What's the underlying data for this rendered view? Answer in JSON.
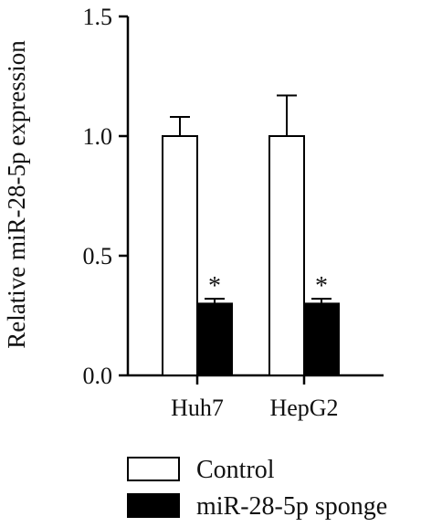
{
  "chart_data": {
    "type": "bar",
    "ylabel": "Relative miR-28-5p expression",
    "xlabel": "",
    "ylim": [
      0,
      1.5
    ],
    "yticks": [
      "0.0",
      "0.5",
      "1.0",
      "1.5"
    ],
    "categories": [
      "Huh7",
      "HepG2"
    ],
    "series": [
      {
        "name": "Control",
        "values": [
          1.0,
          1.0
        ],
        "errors": [
          0.08,
          0.17
        ],
        "color": "#ffffff",
        "annotations": [
          "",
          ""
        ]
      },
      {
        "name": "miR-28-5p sponge",
        "values": [
          0.3,
          0.3
        ],
        "errors": [
          0.02,
          0.02
        ],
        "color": "#000000",
        "annotations": [
          "*",
          "*"
        ]
      }
    ],
    "legend_position": "bottom",
    "grid": false
  }
}
